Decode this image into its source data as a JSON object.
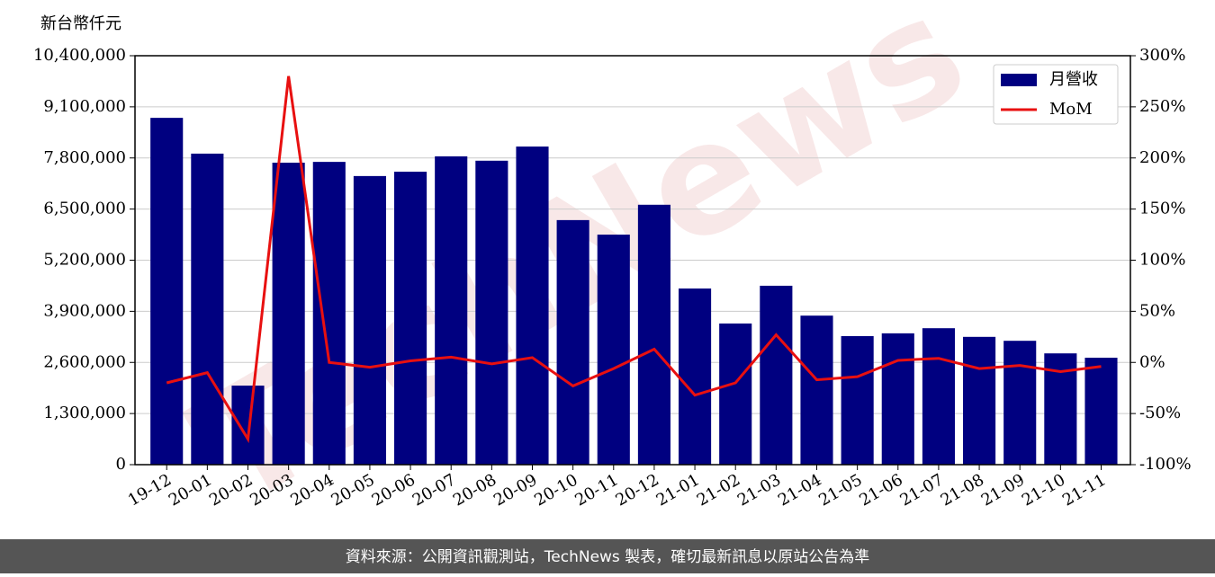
{
  "chart_data": {
    "type": "bar_line",
    "y_label": "新台幣仟元",
    "watermark": "TechNews",
    "source": "資料來源：公開資訊觀測站，TechNews 製表，確切最新訊息以原站公告為準",
    "categories": [
      "19-12",
      "20-01",
      "20-02",
      "20-03",
      "20-04",
      "20-05",
      "20-06",
      "20-07",
      "20-08",
      "20-09",
      "20-10",
      "20-11",
      "20-12",
      "21-01",
      "21-02",
      "21-03",
      "21-04",
      "21-05",
      "21-06",
      "21-07",
      "21-08",
      "21-09",
      "21-10",
      "21-11"
    ],
    "series": [
      {
        "name": "月營收",
        "type": "bar",
        "color": "#000080",
        "values": [
          8820000,
          7910000,
          2010000,
          7680000,
          7700000,
          7340000,
          7450000,
          7840000,
          7730000,
          8090000,
          6220000,
          5850000,
          6610000,
          4480000,
          3590000,
          4550000,
          3790000,
          3270000,
          3340000,
          3470000,
          3250000,
          3150000,
          2830000,
          2720000
        ]
      },
      {
        "name": "MoM",
        "type": "line",
        "axis": "y2",
        "color": "#e81010",
        "values": [
          -20,
          -10,
          -75,
          280,
          0,
          -4.7,
          1.5,
          5.2,
          -1.4,
          4.7,
          -23,
          -6,
          13,
          -32,
          -20,
          27,
          -17,
          -14,
          2,
          4,
          -6,
          -3,
          -9,
          -4
        ]
      }
    ],
    "ylim": [
      0,
      10400000
    ],
    "yticks": [
      0,
      {
        "value": 1300000,
        "label": "1,300,000"
      },
      {
        "value": 2600000,
        "label": "2,600,000"
      },
      {
        "value": 3900000,
        "label": "3,900,000"
      },
      {
        "value": 5200000,
        "label": "5,200,000"
      },
      {
        "value": 6500000,
        "label": "6,500,000"
      },
      {
        "value": 7800000,
        "label": "7,800,000"
      },
      {
        "value": 9100000,
        "label": "9,100,000"
      },
      {
        "value": 10400000,
        "label": "10,400,000"
      }
    ],
    "y2lim": [
      -100,
      300
    ],
    "y2ticks": [
      {
        "value": -100,
        "label": "-100%"
      },
      {
        "value": -50,
        "label": "-50%"
      },
      {
        "value": 0,
        "label": "0%"
      },
      {
        "value": 50,
        "label": "50%"
      },
      {
        "value": 100,
        "label": "100%"
      },
      {
        "value": 150,
        "label": "150%"
      },
      {
        "value": 200,
        "label": "200%"
      },
      {
        "value": 250,
        "label": "250%"
      },
      {
        "value": 300,
        "label": "300%"
      }
    ],
    "grid": true,
    "legend": "upper right"
  }
}
